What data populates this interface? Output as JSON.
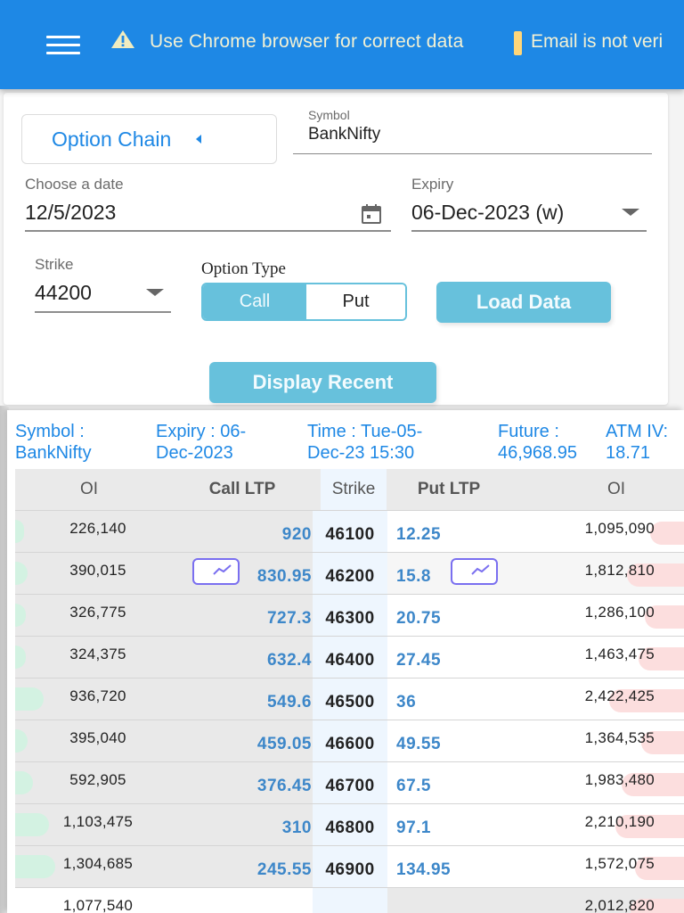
{
  "topbar": {
    "menu_icon": "hamburger-menu-icon",
    "warning_icon": "warning-triangle-icon",
    "banner_message": "Use Chrome browser for correct data",
    "banner_message_2": "Email is not veri",
    "bg_color": "#1e88e5"
  },
  "form": {
    "option_chain_button": "Option Chain",
    "symbol": {
      "label": "Symbol",
      "value": "BankNifty"
    },
    "date": {
      "label": "Choose a date",
      "value": "12/5/2023"
    },
    "expiry": {
      "label": "Expiry",
      "value": "06-Dec-2023 (w)"
    },
    "strike": {
      "label": "Strike",
      "value": "44200"
    },
    "option_type": {
      "label": "Option Type",
      "options": [
        "Call",
        "Put"
      ],
      "selected": "Call"
    },
    "load_button": "Load Data",
    "display_recent_button": "Display Recent",
    "accent_color": "#67c1dc"
  },
  "summary": {
    "symbol_label": "Symbol :",
    "symbol_value": "BankNifty",
    "expiry_label": "Expiry : 06-",
    "expiry_value": "Dec-2023",
    "time_label": "Time : Tue-05-",
    "time_value": "Dec-23 15:30",
    "future_label": "Future :",
    "future_value": "46,968.95",
    "atm_label": "ATM IV:",
    "atm_value": "18.71"
  },
  "table": {
    "headers": [
      "OI",
      "Call LTP",
      "Strike",
      "Put LTP",
      "OI"
    ],
    "rows": [
      {
        "call_oi": "226,140",
        "call_ltp": "920",
        "strike": "46100",
        "put_ltp": "12.25",
        "put_oi": "1,095,090",
        "call_bar": 10,
        "put_bar": 38,
        "chart": false
      },
      {
        "call_oi": "390,015",
        "call_ltp": "830.95",
        "strike": "46200",
        "put_ltp": "15.8",
        "put_oi": "1,812,810",
        "call_bar": 14,
        "put_bar": 64,
        "chart": true
      },
      {
        "call_oi": "326,775",
        "call_ltp": "727.3",
        "strike": "46300",
        "put_ltp": "20.75",
        "put_oi": "1,286,100",
        "call_bar": 12,
        "put_bar": 44,
        "chart": false
      },
      {
        "call_oi": "324,375",
        "call_ltp": "632.4",
        "strike": "46400",
        "put_ltp": "27.45",
        "put_oi": "1,463,475",
        "call_bar": 12,
        "put_bar": 51,
        "chart": false
      },
      {
        "call_oi": "936,720",
        "call_ltp": "549.6",
        "strike": "46500",
        "put_ltp": "36",
        "put_oi": "2,422,425",
        "call_bar": 32,
        "put_bar": 84,
        "chart": false
      },
      {
        "call_oi": "395,040",
        "call_ltp": "459.05",
        "strike": "46600",
        "put_ltp": "49.55",
        "put_oi": "1,364,535",
        "call_bar": 14,
        "put_bar": 48,
        "chart": false
      },
      {
        "call_oi": "592,905",
        "call_ltp": "376.45",
        "strike": "46700",
        "put_ltp": "67.5",
        "put_oi": "1,983,480",
        "call_bar": 20,
        "put_bar": 70,
        "chart": false
      },
      {
        "call_oi": "1,103,475",
        "call_ltp": "310",
        "strike": "46800",
        "put_ltp": "97.1",
        "put_oi": "2,210,190",
        "call_bar": 38,
        "put_bar": 77,
        "chart": false
      },
      {
        "call_oi": "1,304,685",
        "call_ltp": "245.55",
        "strike": "46900",
        "put_ltp": "134.95",
        "put_oi": "1,572,075",
        "call_bar": 45,
        "put_bar": 55,
        "chart": false
      },
      {
        "call_oi": "1,077,540",
        "call_ltp": "",
        "strike": "",
        "put_ltp": "",
        "put_oi": "2,012,820",
        "call_bar": 140,
        "put_bar": 60,
        "chart": false
      }
    ],
    "call_bar_color": "#d3f2e2",
    "put_bar_color": "#fcdede",
    "ltp_color": "#3d87c9"
  }
}
